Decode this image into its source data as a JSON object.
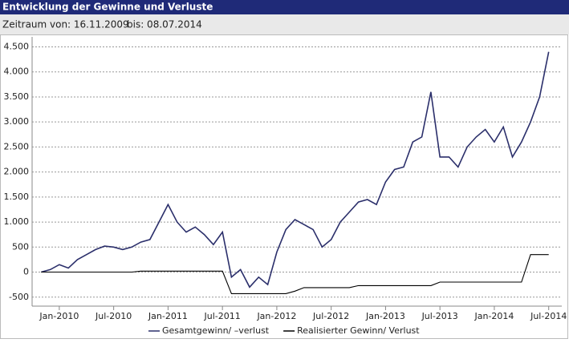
{
  "header": {
    "title": "Entwicklung der Gewinne und Verluste",
    "period_label": "Zeitraum",
    "from": "von: 16.11.2009",
    "to": "bis: 08.07.2014"
  },
  "chart_data": {
    "type": "line",
    "x": [
      "2009-11",
      "2009-12",
      "2010-01",
      "2010-02",
      "2010-03",
      "2010-04",
      "2010-05",
      "2010-06",
      "2010-07",
      "2010-08",
      "2010-09",
      "2010-10",
      "2010-11",
      "2010-12",
      "2011-01",
      "2011-02",
      "2011-03",
      "2011-04",
      "2011-05",
      "2011-06",
      "2011-07",
      "2011-08",
      "2011-09",
      "2011-10",
      "2011-11",
      "2011-12",
      "2012-01",
      "2012-02",
      "2012-03",
      "2012-04",
      "2012-05",
      "2012-06",
      "2012-07",
      "2012-08",
      "2012-09",
      "2012-10",
      "2012-11",
      "2012-12",
      "2013-01",
      "2013-02",
      "2013-03",
      "2013-04",
      "2013-05",
      "2013-06",
      "2013-07",
      "2013-08",
      "2013-09",
      "2013-10",
      "2013-11",
      "2013-12",
      "2014-01",
      "2014-02",
      "2014-03",
      "2014-04",
      "2014-05",
      "2014-06",
      "2014-07"
    ],
    "series": [
      {
        "name": "Gesamtgewinn/ –verlust",
        "color": "#2b2f6b",
        "values": [
          0,
          50,
          150,
          80,
          250,
          350,
          450,
          520,
          500,
          450,
          500,
          600,
          650,
          1000,
          1350,
          1000,
          800,
          900,
          750,
          550,
          800,
          -100,
          50,
          -300,
          -100,
          -250,
          400,
          850,
          1050,
          950,
          850,
          500,
          650,
          1000,
          1200,
          1400,
          1450,
          1350,
          1800,
          2050,
          2100,
          2600,
          2700,
          3600,
          2300,
          2300,
          2100,
          2500,
          2700,
          2850,
          2600,
          2900,
          2300,
          2600,
          3000,
          3500,
          4400
        ]
      },
      {
        "name": "Realisierter Gewinn/ Verlust",
        "color": "#000000",
        "values": [
          0,
          0,
          0,
          0,
          0,
          0,
          0,
          0,
          0,
          0,
          0,
          20,
          20,
          20,
          20,
          20,
          20,
          20,
          20,
          20,
          20,
          -430,
          -430,
          -430,
          -430,
          -430,
          -430,
          -430,
          -380,
          -310,
          -310,
          -310,
          -310,
          -310,
          -310,
          -270,
          -270,
          -270,
          -270,
          -270,
          -270,
          -270,
          -270,
          -270,
          -200,
          -200,
          -200,
          -200,
          -200,
          -200,
          -200,
          -200,
          -200,
          -200,
          350,
          350,
          350
        ]
      }
    ],
    "xlim": [
      "2009-10",
      "2014-08"
    ],
    "xticks": [
      {
        "value": "2010-01",
        "label": "Jan-2010"
      },
      {
        "value": "2010-07",
        "label": "Jul-2010"
      },
      {
        "value": "2011-01",
        "label": "Jan-2011"
      },
      {
        "value": "2011-07",
        "label": "Jul-2011"
      },
      {
        "value": "2012-01",
        "label": "Jan-2012"
      },
      {
        "value": "2012-07",
        "label": "Jul-2012"
      },
      {
        "value": "2013-01",
        "label": "Jan-2013"
      },
      {
        "value": "2013-07",
        "label": "Jul-2013"
      },
      {
        "value": "2014-01",
        "label": "Jan-2014"
      },
      {
        "value": "2014-07",
        "label": "Jul-2014"
      }
    ],
    "ylim": [
      -680,
      4700
    ],
    "yticks": [
      -500,
      0,
      500,
      {
        "value": 1000,
        "label": "1.000"
      },
      {
        "value": 1500,
        "label": "1.500"
      },
      {
        "value": 2000,
        "label": "2.000"
      },
      {
        "value": 2500,
        "label": "2.500"
      },
      {
        "value": 3000,
        "label": "3.000"
      },
      {
        "value": 3500,
        "label": "3.500"
      },
      {
        "value": 4000,
        "label": "4.000"
      },
      {
        "value": 4500,
        "label": "4.500"
      }
    ],
    "grid": true,
    "legend": "bottom"
  }
}
